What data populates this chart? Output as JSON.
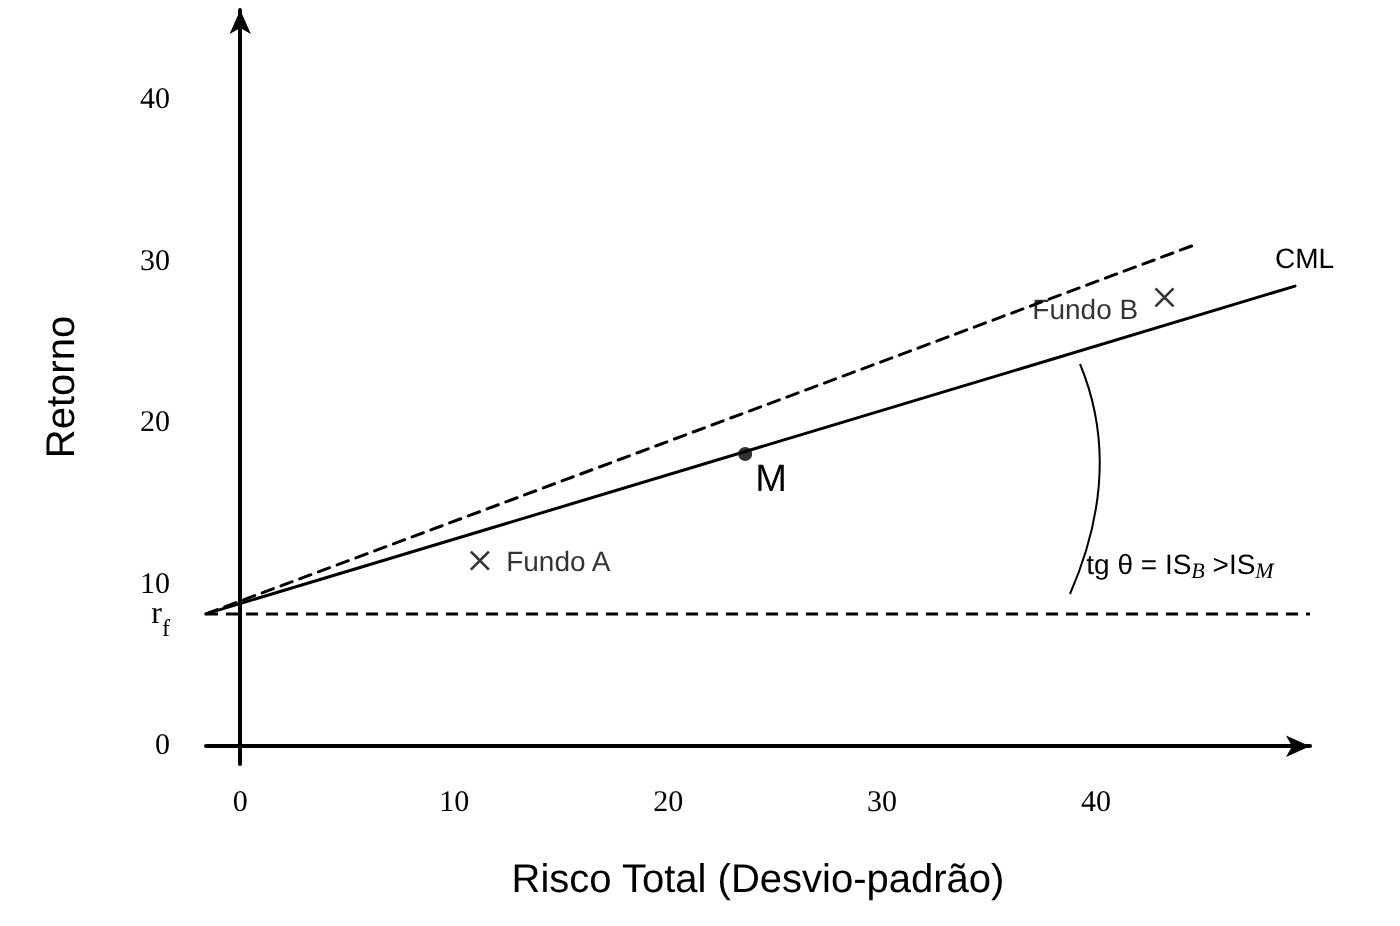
{
  "chart_data": {
    "type": "line",
    "xlabel": "Risco Total (Desvio-padrão)",
    "ylabel": "Retorno",
    "xlim": [
      -1.6,
      50
    ],
    "ylim": [
      -1.1,
      45.6
    ],
    "xticks": [
      0,
      10,
      20,
      30,
      40
    ],
    "yticks": [
      0,
      {
        "value": 8.2,
        "label": "r$_{f}$"
      },
      10,
      20,
      30,
      40
    ],
    "series": [
      {
        "x": [
          -1.6,
          49.3
        ],
        "values": [
          8.2,
          28.5
        ],
        "color": "#000000",
        "line_style": "solid"
      },
      {
        "x": [
          -1.6,
          44.7
        ],
        "values": [
          8.2,
          31.1
        ],
        "color": "#000000",
        "line_style": "dashed"
      },
      {
        "type": "scatter",
        "x": [
          23.6
        ],
        "values": [
          18.1
        ],
        "color": "#000000",
        "marker": "circle"
      },
      {
        "type": "scatter",
        "name": "Fundo A",
        "x": [
          11.2
        ],
        "values": [
          11.5
        ],
        "color": "#000000",
        "marker": "cross"
      },
      {
        "type": "scatter",
        "name": "Fundo B",
        "x": [
          43.2
        ],
        "values": [
          27.8
        ],
        "color": "#000000",
        "marker": "cross"
      }
    ],
    "ref_lines": [
      {
        "axis": "y",
        "value": 8.2,
        "color": "#000000",
        "line_style": "dashed"
      }
    ],
    "annotations": [
      {
        "text": "CML",
        "x": 49.3,
        "y": 28.5
      },
      {
        "text": "M",
        "x": 23.6,
        "y": 18.1
      },
      "tg θ = IS$_{B}$ >IS$_{M}$"
    ],
    "grid": false,
    "legend": false
  }
}
